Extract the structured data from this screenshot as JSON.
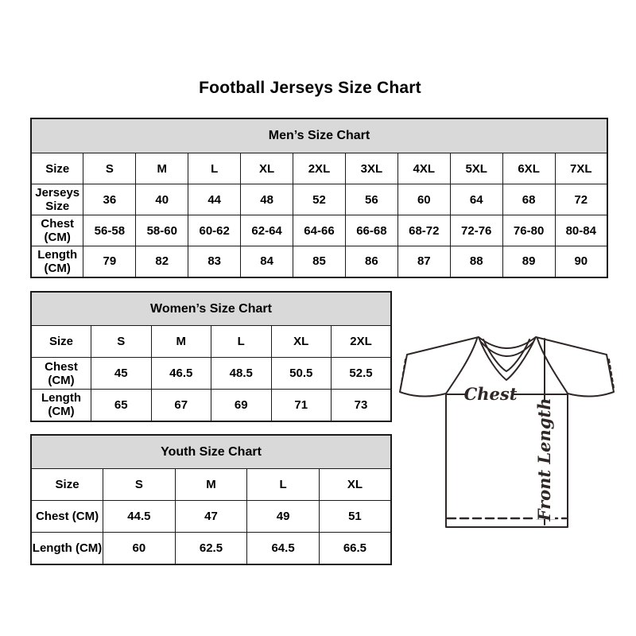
{
  "page": {
    "title": "Football Jerseys Size Chart"
  },
  "size_charts": {
    "men": {
      "title": "Men’s Size Chart",
      "rows": [
        [
          "Size",
          "S",
          "M",
          "L",
          "XL",
          "2XL",
          "3XL",
          "4XL",
          "5XL",
          "6XL",
          "7XL"
        ],
        [
          "Jerseys Size",
          "36",
          "40",
          "44",
          "48",
          "52",
          "56",
          "60",
          "64",
          "68",
          "72"
        ],
        [
          "Chest (CM)",
          "56-58",
          "58-60",
          "60-62",
          "62-64",
          "64-66",
          "66-68",
          "68-72",
          "72-76",
          "76-80",
          "80-84"
        ],
        [
          "Length (CM)",
          "79",
          "82",
          "83",
          "84",
          "85",
          "86",
          "87",
          "88",
          "89",
          "90"
        ]
      ]
    },
    "women": {
      "title": "Women’s Size Chart",
      "rows": [
        [
          "Size",
          "S",
          "M",
          "L",
          "XL",
          "2XL"
        ],
        [
          "Chest (CM)",
          "45",
          "46.5",
          "48.5",
          "50.5",
          "52.5"
        ],
        [
          "Length (CM)",
          "65",
          "67",
          "69",
          "71",
          "73"
        ]
      ]
    },
    "youth": {
      "title": "Youth Size Chart",
      "rows": [
        [
          "Size",
          "S",
          "M",
          "L",
          "XL"
        ],
        [
          "Chest (CM)",
          "44.5",
          "47",
          "49",
          "51"
        ],
        [
          "Length (CM)",
          "60",
          "62.5",
          "64.5",
          "66.5"
        ]
      ]
    }
  },
  "diagram": {
    "chest_label": "Chest",
    "front_length_label": "Front Length"
  },
  "colors": {
    "table_header_bg": "#d9d9d9",
    "table_border": "#1a1a1a",
    "text": "#000000",
    "diagram_stroke": "#2f2725"
  }
}
